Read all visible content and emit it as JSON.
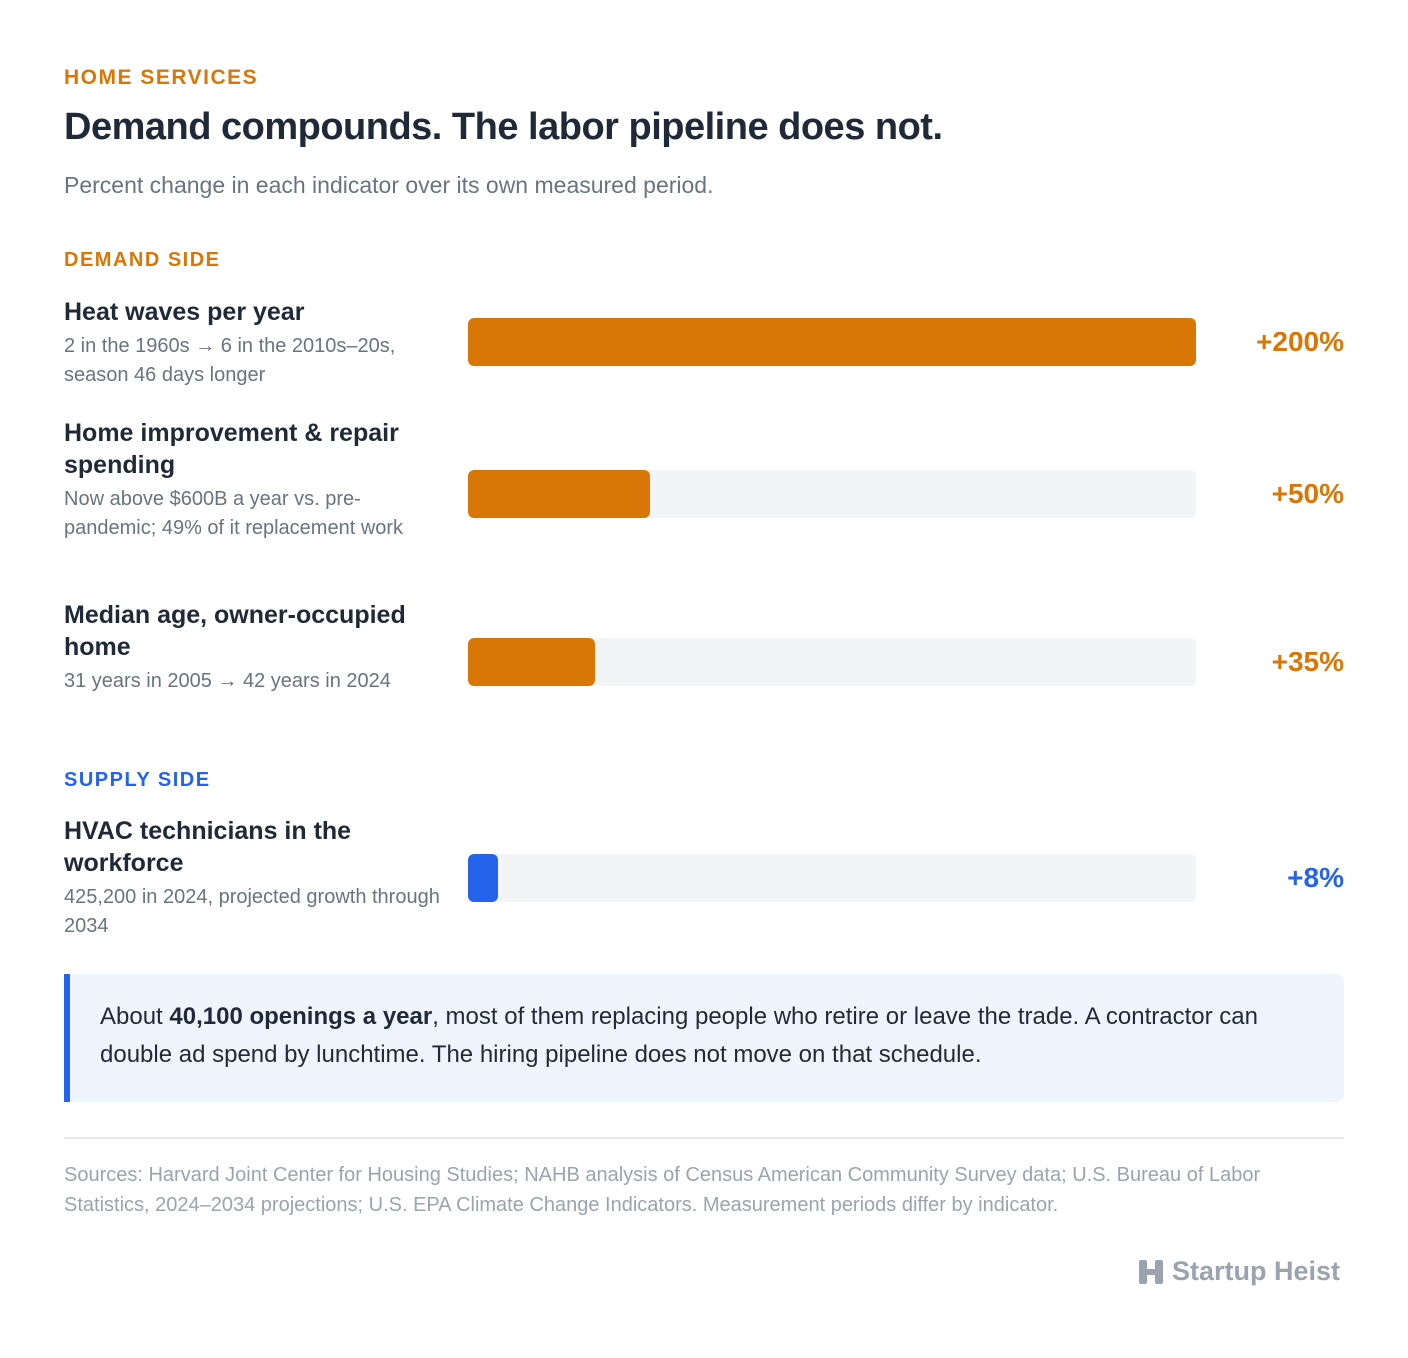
{
  "header": {
    "eyebrow": "HOME SERVICES",
    "title": "Demand compounds. The labor pipeline does not.",
    "subtitle": "Percent change in each indicator over its own measured period."
  },
  "sections": {
    "demand_label": "DEMAND SIDE",
    "supply_label": "SUPPLY SIDE"
  },
  "rows": [
    {
      "label": "Heat waves per year",
      "note": "2 in the 1960s → 6 in the 2010s–20s, season 46 days longer",
      "value_label": "+200%"
    },
    {
      "label": "Home improvement & repair spending",
      "note": "Now above $600B a year vs. pre-pandemic; 49% of it replacement work",
      "value_label": "+50%"
    },
    {
      "label": "Median age, owner-occupied home",
      "note": "31 years in 2005 → 42 years in 2024",
      "value_label": "+35%"
    },
    {
      "label": "HVAC technicians in the workforce",
      "note": "425,200 in 2024, projected growth through 2034",
      "value_label": "+8%"
    }
  ],
  "colors": {
    "demand": "#d97706",
    "supply": "#2563eb",
    "track": "#f3f4f6"
  },
  "chart_data": {
    "type": "bar",
    "orientation": "horizontal",
    "categories": [
      "Heat waves per year",
      "Home improvement & repair spending",
      "Median age, owner-occupied home",
      "HVAC technicians in the workforce"
    ],
    "values": [
      200,
      50,
      35,
      8
    ],
    "groups": [
      "DEMAND SIDE",
      "DEMAND SIDE",
      "DEMAND SIDE",
      "SUPPLY SIDE"
    ],
    "xlim": [
      0,
      200
    ],
    "title": "Demand compounds. The labor pipeline does not.",
    "subtitle": "Percent change in each indicator over its own measured period."
  },
  "callout": {
    "prefix": "About ",
    "bold": "40,100 openings a year",
    "suffix": ", most of them replacing people who retire or leave the trade. A contractor can double ad spend by lunchtime. The hiring pipeline does not move on that schedule."
  },
  "sources": "Sources: Harvard Joint Center for Housing Studies; NAHB analysis of Census American Community Survey data; U.S. Bureau of Labor Statistics, 2024–2034 projections; U.S. EPA Climate Change Indicators. Measurement periods differ by indicator.",
  "brand": {
    "name": "Startup Heist",
    "icon": "heist-logo-icon"
  }
}
